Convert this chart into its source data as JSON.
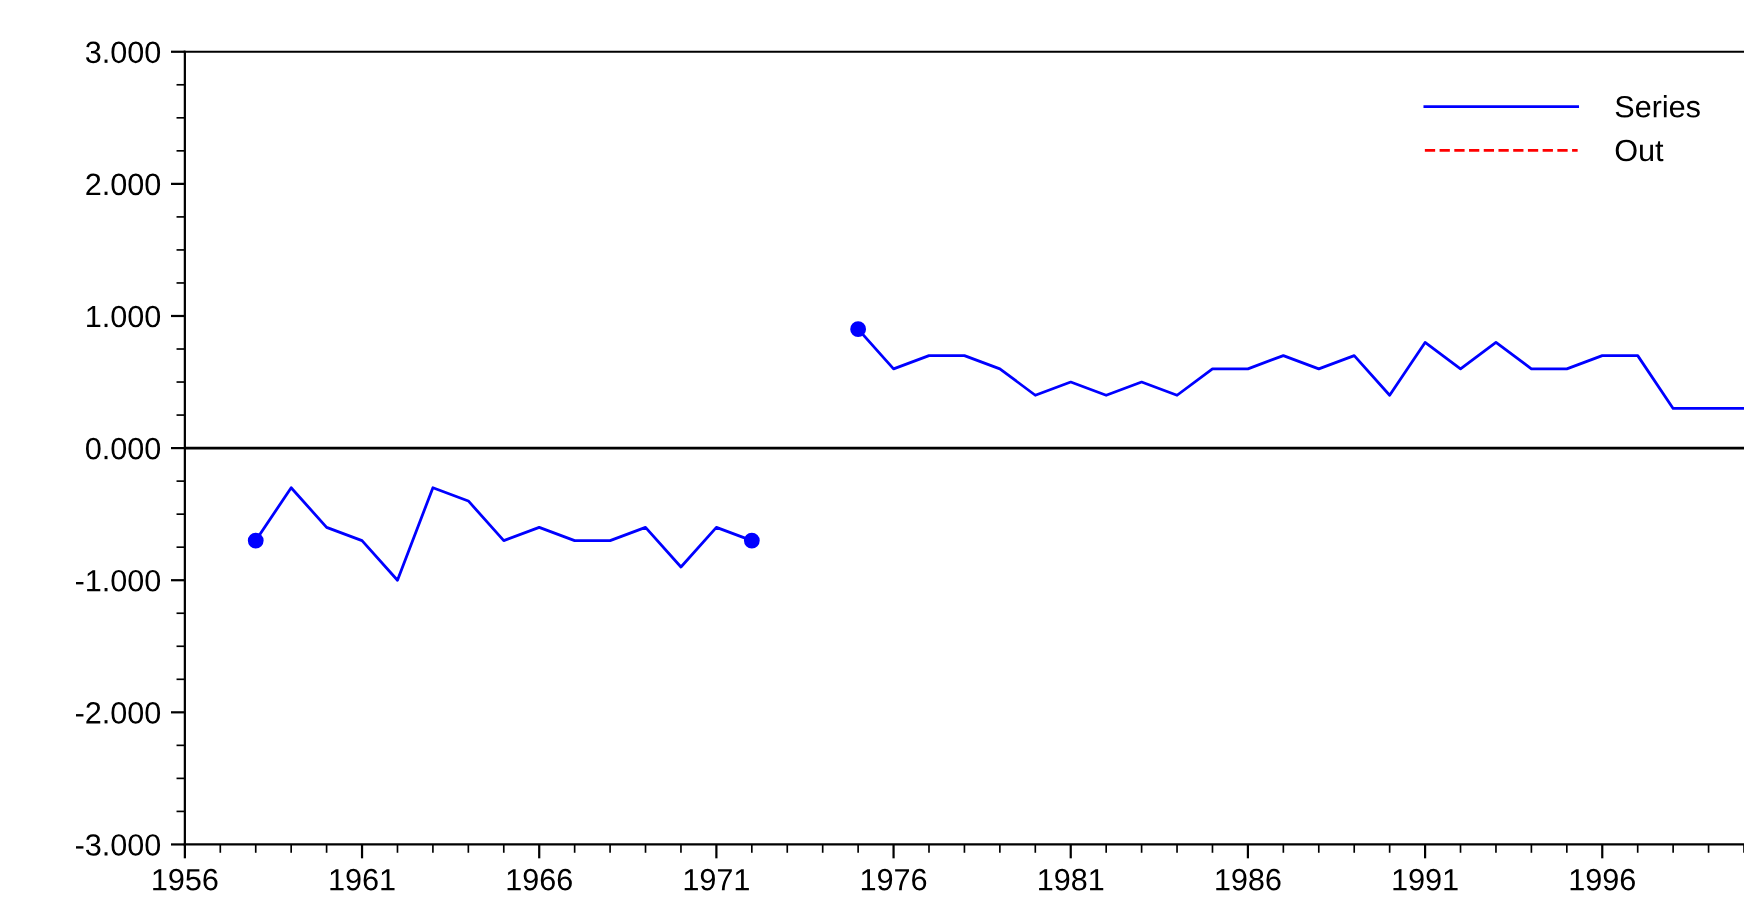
{
  "chart_data": {
    "type": "line",
    "series": [
      {
        "name": "Series",
        "color": "#0000ff",
        "line_style": "solid",
        "x": [
          1958,
          1959,
          1960,
          1961,
          1962,
          1963,
          1964,
          1965,
          1966,
          1967,
          1968,
          1969,
          1970,
          1971,
          1972,
          1973,
          1974,
          1975,
          1976,
          1977,
          1978,
          1979,
          1980,
          1981,
          1982,
          1983,
          1984,
          1985,
          1986,
          1987,
          1988,
          1989,
          1990,
          1991,
          1992,
          1993,
          1994,
          1995,
          1996,
          1997,
          1998,
          1999,
          2000
        ],
        "values": [
          -0.7,
          -0.3,
          -0.6,
          -0.7,
          -1.0,
          -0.3,
          -0.4,
          -0.7,
          -0.6,
          -0.7,
          -0.7,
          -0.6,
          -0.9,
          -0.6,
          -0.7,
          null,
          null,
          0.9,
          0.6,
          0.7,
          0.7,
          0.6,
          0.4,
          0.5,
          0.4,
          0.5,
          0.4,
          0.6,
          0.6,
          0.7,
          0.6,
          0.7,
          0.4,
          0.8,
          0.6,
          0.8,
          0.6,
          0.6,
          0.7,
          0.7,
          0.3,
          0.3,
          0.3
        ]
      },
      {
        "name": "Out",
        "color": "#ff0000",
        "line_style": "dashed"
      },
      {
        "type": "scatter",
        "color": "#0000ff",
        "marker": "circle",
        "x": [
          1958,
          1972,
          1975
        ],
        "values": [
          -0.7,
          -0.7,
          0.9
        ]
      }
    ],
    "xlim": [
      1956,
      2000
    ],
    "xticks": [
      1956,
      1961,
      1966,
      1971,
      1976,
      1981,
      1986,
      1991,
      1996
    ],
    "ylim": [
      -3,
      3
    ],
    "yticks": [
      {
        "value": -3,
        "label": "-3.000"
      },
      {
        "value": -2,
        "label": "-2.000"
      },
      {
        "value": -1,
        "label": "-1.000"
      },
      {
        "value": 0,
        "label": "0.000"
      },
      {
        "value": 1,
        "label": "1.000"
      },
      {
        "value": 2,
        "label": "2.000"
      },
      {
        "value": 3,
        "label": "3.000"
      }
    ],
    "ref_lines": [
      {
        "axis": "y",
        "value": 0,
        "color": "#000000"
      }
    ],
    "grid": false,
    "legend": "top right"
  }
}
